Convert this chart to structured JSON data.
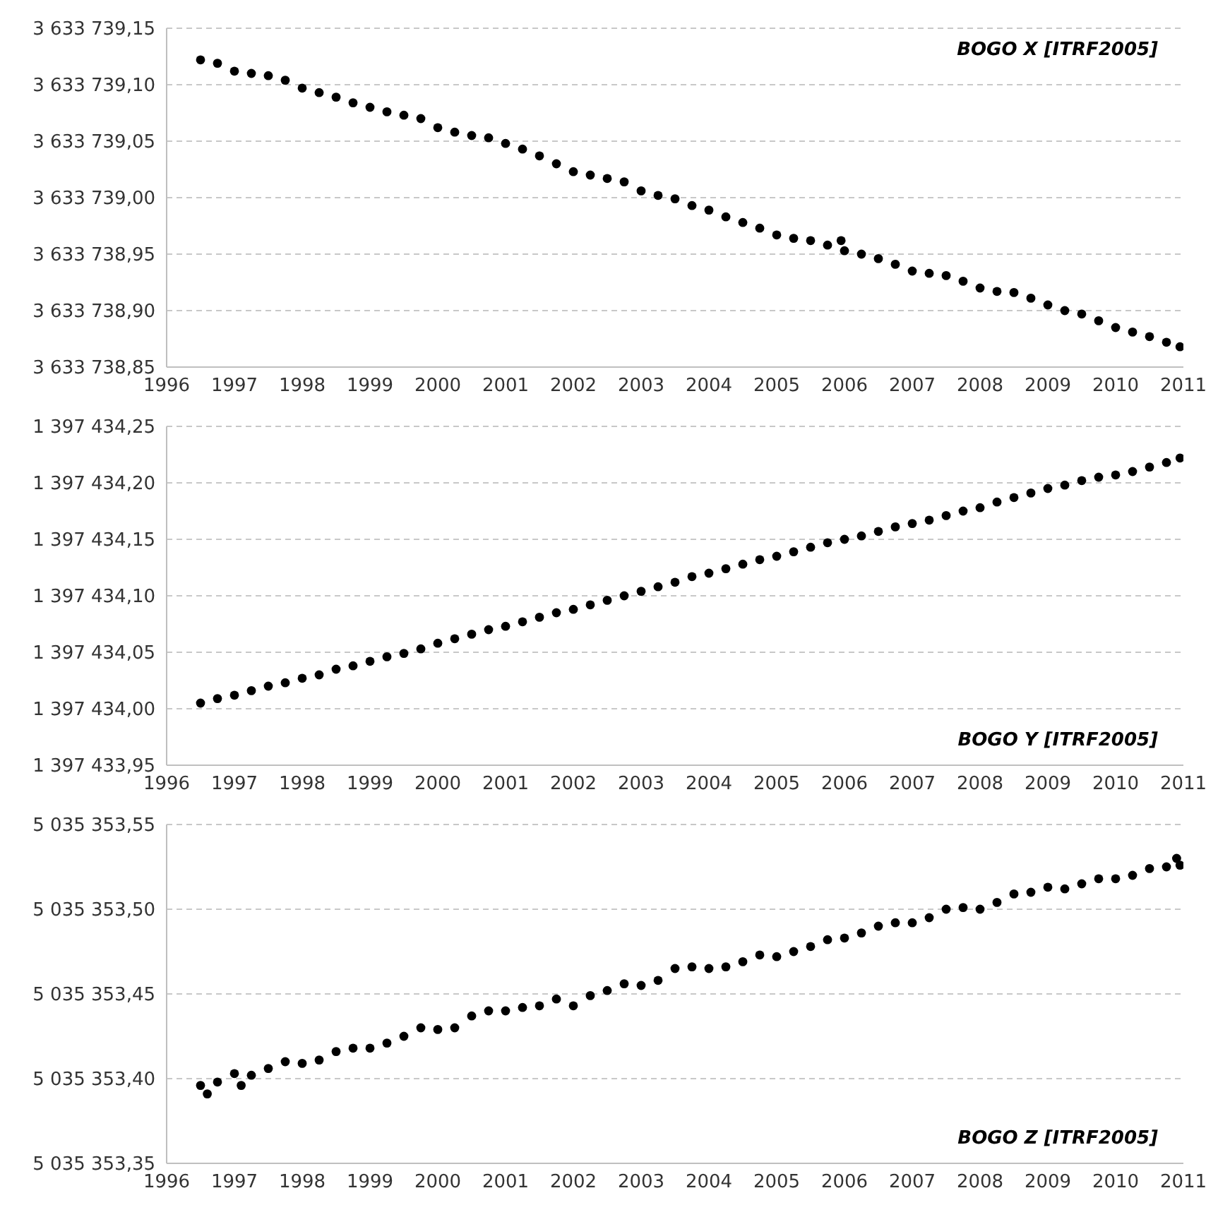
{
  "chart_data": [
    {
      "type": "scatter",
      "title": "BOGO X [ITRF2005]",
      "color": "#000000",
      "marker": "circle",
      "grid": "y",
      "xlim": [
        1996,
        2011
      ],
      "xticks": [
        1996,
        1997,
        1998,
        1999,
        2000,
        2001,
        2002,
        2003,
        2004,
        2005,
        2006,
        2007,
        2008,
        2009,
        2010,
        2011
      ],
      "ylim": [
        3633738.85,
        3633739.15
      ],
      "yticks": [
        {
          "value": 3633738.85,
          "label": "3 633 738,85"
        },
        {
          "value": 3633738.9,
          "label": "3 633 738,90"
        },
        {
          "value": 3633738.95,
          "label": "3 633 738,95"
        },
        {
          "value": 3633739.0,
          "label": "3 633 739,00"
        },
        {
          "value": 3633739.05,
          "label": "3 633 739,05"
        },
        {
          "value": 3633739.1,
          "label": "3 633 739,10"
        },
        {
          "value": 3633739.15,
          "label": "3 633 739,15"
        }
      ],
      "x": [
        1996.5,
        1996.75,
        1997,
        1997.25,
        1997.5,
        1997.75,
        1998,
        1998.25,
        1998.5,
        1998.75,
        1999,
        1999.25,
        1999.5,
        1999.75,
        2000,
        2000.25,
        2000.5,
        2000.75,
        2001,
        2001.25,
        2001.5,
        2001.75,
        2002,
        2002.25,
        2002.5,
        2002.75,
        2003,
        2003.25,
        2003.5,
        2003.75,
        2004,
        2004.25,
        2004.5,
        2004.75,
        2005,
        2005.25,
        2005.5,
        2005.75,
        2005.95,
        2006,
        2006.25,
        2006.5,
        2006.75,
        2007,
        2007.25,
        2007.5,
        2007.75,
        2008,
        2008.25,
        2008.5,
        2008.75,
        2009,
        2009.25,
        2009.5,
        2009.75,
        2010,
        2010.25,
        2010.5,
        2010.75,
        2010.95
      ],
      "values": [
        3633739.122,
        3633739.119,
        3633739.112,
        3633739.11,
        3633739.108,
        3633739.104,
        3633739.097,
        3633739.093,
        3633739.089,
        3633739.084,
        3633739.08,
        3633739.076,
        3633739.073,
        3633739.07,
        3633739.062,
        3633739.058,
        3633739.055,
        3633739.053,
        3633739.048,
        3633739.043,
        3633739.037,
        3633739.03,
        3633739.023,
        3633739.02,
        3633739.017,
        3633739.014,
        3633739.006,
        3633739.002,
        3633738.999,
        3633738.993,
        3633738.989,
        3633738.983,
        3633738.978,
        3633738.973,
        3633738.967,
        3633738.964,
        3633738.962,
        3633738.958,
        3633738.962,
        3633738.953,
        3633738.95,
        3633738.946,
        3633738.941,
        3633738.935,
        3633738.933,
        3633738.931,
        3633738.926,
        3633738.92,
        3633738.917,
        3633738.916,
        3633738.911,
        3633738.905,
        3633738.9,
        3633738.897,
        3633738.891,
        3633738.885,
        3633738.881,
        3633738.877,
        3633738.872,
        3633738.868
      ]
    },
    {
      "type": "scatter",
      "title": "BOGO Y [ITRF2005]",
      "color": "#000000",
      "marker": "circle",
      "grid": "y",
      "xlim": [
        1996,
        2011
      ],
      "xticks": [
        1996,
        1997,
        1998,
        1999,
        2000,
        2001,
        2002,
        2003,
        2004,
        2005,
        2006,
        2007,
        2008,
        2009,
        2010,
        2011
      ],
      "ylim": [
        1397433.95,
        1397434.25
      ],
      "yticks": [
        {
          "value": 1397433.95,
          "label": "1 397 433,95"
        },
        {
          "value": 1397434.0,
          "label": "1 397 434,00"
        },
        {
          "value": 1397434.05,
          "label": "1 397 434,05"
        },
        {
          "value": 1397434.1,
          "label": "1 397 434,10"
        },
        {
          "value": 1397434.15,
          "label": "1 397 434,15"
        },
        {
          "value": 1397434.2,
          "label": "1 397 434,20"
        },
        {
          "value": 1397434.25,
          "label": "1 397 434,25"
        }
      ],
      "x": [
        1996.5,
        1996.75,
        1997,
        1997.25,
        1997.5,
        1997.75,
        1998,
        1998.25,
        1998.5,
        1998.75,
        1999,
        1999.25,
        1999.5,
        1999.75,
        2000,
        2000.25,
        2000.5,
        2000.75,
        2001,
        2001.25,
        2001.5,
        2001.75,
        2002,
        2002.25,
        2002.5,
        2002.75,
        2003,
        2003.25,
        2003.5,
        2003.75,
        2004,
        2004.25,
        2004.5,
        2004.75,
        2005,
        2005.25,
        2005.5,
        2005.75,
        2006,
        2006.25,
        2006.5,
        2006.75,
        2007,
        2007.25,
        2007.5,
        2007.75,
        2008,
        2008.25,
        2008.5,
        2008.75,
        2009,
        2009.25,
        2009.5,
        2009.75,
        2010,
        2010.25,
        2010.5,
        2010.75,
        2010.95
      ],
      "values": [
        1397434.005,
        1397434.009,
        1397434.012,
        1397434.016,
        1397434.02,
        1397434.023,
        1397434.027,
        1397434.03,
        1397434.035,
        1397434.038,
        1397434.042,
        1397434.046,
        1397434.049,
        1397434.053,
        1397434.058,
        1397434.062,
        1397434.066,
        1397434.07,
        1397434.073,
        1397434.077,
        1397434.081,
        1397434.085,
        1397434.088,
        1397434.092,
        1397434.096,
        1397434.1,
        1397434.104,
        1397434.108,
        1397434.112,
        1397434.117,
        1397434.12,
        1397434.124,
        1397434.128,
        1397434.132,
        1397434.135,
        1397434.139,
        1397434.143,
        1397434.147,
        1397434.15,
        1397434.153,
        1397434.157,
        1397434.161,
        1397434.164,
        1397434.167,
        1397434.171,
        1397434.175,
        1397434.178,
        1397434.183,
        1397434.187,
        1397434.191,
        1397434.195,
        1397434.198,
        1397434.202,
        1397434.205,
        1397434.207,
        1397434.21,
        1397434.214,
        1397434.218,
        1397434.222
      ]
    },
    {
      "type": "scatter",
      "title": "BOGO Z [ITRF2005]",
      "color": "#000000",
      "marker": "circle",
      "grid": "y",
      "xlim": [
        1996,
        2011
      ],
      "xticks": [
        1996,
        1997,
        1998,
        1999,
        2000,
        2001,
        2002,
        2003,
        2004,
        2005,
        2006,
        2007,
        2008,
        2009,
        2010,
        2011
      ],
      "ylim": [
        5035353.35,
        5035353.55
      ],
      "yticks": [
        {
          "value": 5035353.35,
          "label": "5 035 353,35"
        },
        {
          "value": 5035353.4,
          "label": "5 035 353,40"
        },
        {
          "value": 5035353.45,
          "label": "5 035 353,45"
        },
        {
          "value": 5035353.5,
          "label": "5 035 353,50"
        },
        {
          "value": 5035353.55,
          "label": "5 035 353,55"
        }
      ],
      "x": [
        1996.5,
        1996.6,
        1996.75,
        1997,
        1997.1,
        1997.25,
        1997.5,
        1997.75,
        1998,
        1998.25,
        1998.5,
        1998.75,
        1999,
        1999.25,
        1999.5,
        1999.75,
        2000,
        2000.25,
        2000.5,
        2000.75,
        2001,
        2001.25,
        2001.5,
        2001.75,
        2002,
        2002.25,
        2002.5,
        2002.75,
        2003,
        2003.25,
        2003.5,
        2003.75,
        2004,
        2004.25,
        2004.5,
        2004.75,
        2005,
        2005.25,
        2005.5,
        2005.75,
        2006,
        2006.25,
        2006.5,
        2006.75,
        2007,
        2007.25,
        2007.5,
        2007.75,
        2008,
        2008.25,
        2008.5,
        2008.75,
        2009,
        2009.25,
        2009.5,
        2009.75,
        2010,
        2010.25,
        2010.5,
        2010.75,
        2010.9,
        2010.95
      ],
      "values": [
        5035353.396,
        5035353.391,
        5035353.398,
        5035353.403,
        5035353.396,
        5035353.402,
        5035353.406,
        5035353.41,
        5035353.409,
        5035353.411,
        5035353.416,
        5035353.418,
        5035353.418,
        5035353.421,
        5035353.425,
        5035353.43,
        5035353.429,
        5035353.43,
        5035353.437,
        5035353.44,
        5035353.44,
        5035353.442,
        5035353.443,
        5035353.447,
        5035353.443,
        5035353.449,
        5035353.452,
        5035353.456,
        5035353.455,
        5035353.458,
        5035353.465,
        5035353.466,
        5035353.465,
        5035353.466,
        5035353.469,
        5035353.473,
        5035353.472,
        5035353.475,
        5035353.478,
        5035353.482,
        5035353.483,
        5035353.486,
        5035353.49,
        5035353.492,
        5035353.492,
        5035353.495,
        5035353.5,
        5035353.501,
        5035353.5,
        5035353.504,
        5035353.509,
        5035353.51,
        5035353.513,
        5035353.512,
        5035353.515,
        5035353.518,
        5035353.518,
        5035353.52,
        5035353.524,
        5035353.525,
        5035353.53,
        5035353.526
      ]
    }
  ]
}
